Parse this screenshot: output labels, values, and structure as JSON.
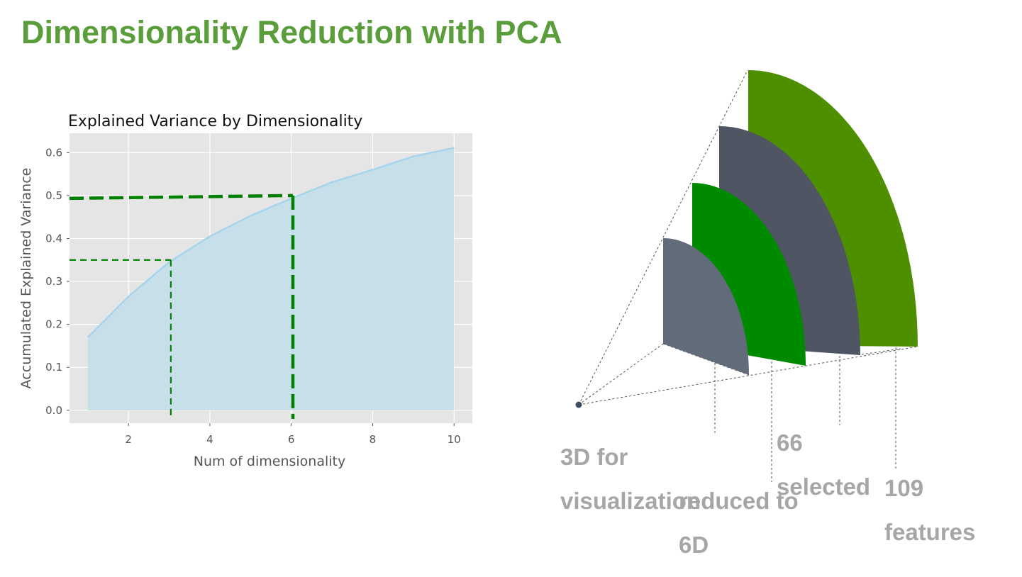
{
  "slide": {
    "title": "Dimensionality Reduction with PCA"
  },
  "chart_data": {
    "type": "area",
    "title": "Explained Variance by Dimensionality",
    "xlabel": "Num of dimensionality",
    "ylabel": "Accumulated Explained Variance",
    "x": [
      1,
      2,
      3,
      4,
      5,
      6,
      7,
      8,
      9,
      10
    ],
    "series": [
      {
        "values": [
          0.17,
          0.265,
          0.345,
          0.405,
          0.453,
          0.493,
          0.531,
          0.56,
          0.591,
          0.611
        ]
      }
    ],
    "xlim": [
      0.55,
      10.45
    ],
    "ylim": [
      -0.03,
      0.645
    ],
    "xticks": [
      2,
      4,
      6,
      8,
      10
    ],
    "yticks": [
      0.0,
      0.1,
      0.2,
      0.3,
      0.4,
      0.5,
      0.6
    ],
    "grid": true,
    "guides": [
      {
        "x": 3,
        "y": 0.35,
        "style": "thin"
      },
      {
        "x": 6,
        "y": 0.5,
        "style": "thick"
      }
    ],
    "colors": {
      "plot_bg": "#e5e5e5",
      "grid": "#ffffff",
      "line": "#a6d4ec",
      "fill": "#c7dfe8",
      "guide": "#008000",
      "tick_text": "#555555",
      "title_text": "#111111"
    }
  },
  "diagram": {
    "stages": [
      {
        "id": "3d",
        "label": "3D for\nvisualization",
        "color": "#626b7a"
      },
      {
        "id": "6d",
        "label": "reduced to\n6D",
        "color": "#008a00"
      },
      {
        "id": "66",
        "label": "66\nselected",
        "color": "#4f5562"
      },
      {
        "id": "109",
        "label": "109\nfeatures",
        "color": "#4e8f00"
      }
    ],
    "apex_color": "#3c5064",
    "line_color": "#555555"
  }
}
